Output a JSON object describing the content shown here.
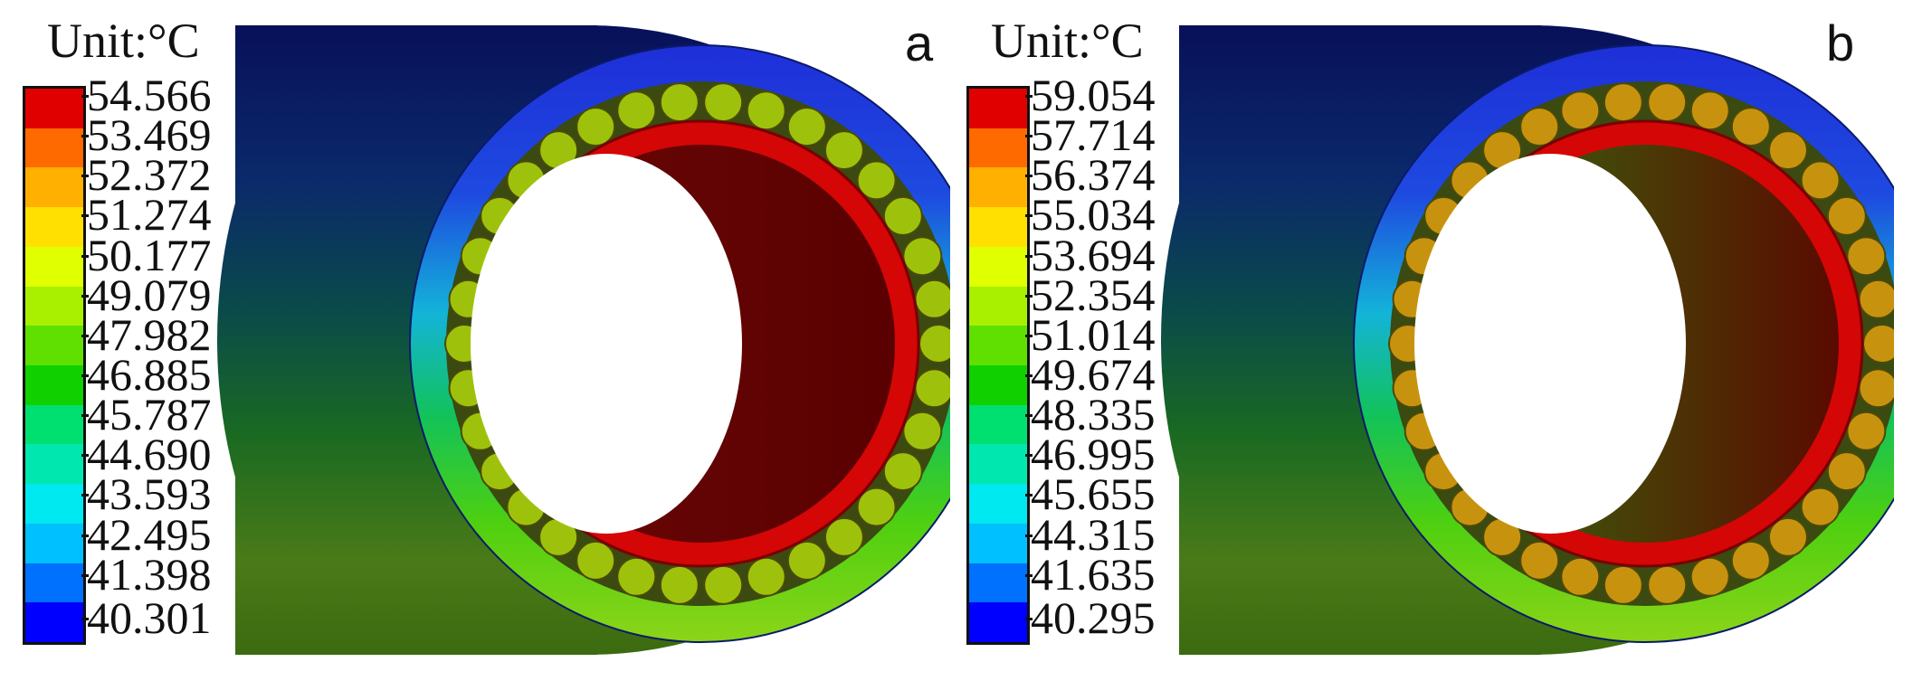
{
  "panels": [
    {
      "letter": "a",
      "unit_label": "Unit:°C",
      "legend_values": [
        "54.566",
        "53.469",
        "52.372",
        "51.274",
        "50.177",
        "49.079",
        "47.982",
        "46.885",
        "45.787",
        "44.690",
        "43.593",
        "42.495",
        "41.398",
        "40.301"
      ],
      "roller_color": "#9ec20c"
    },
    {
      "letter": "b",
      "unit_label": "Unit:°C",
      "legend_values": [
        "59.054",
        "57.714",
        "56.374",
        "55.034",
        "53.694",
        "52.354",
        "51.014",
        "49.674",
        "48.335",
        "46.995",
        "45.655",
        "44.315",
        "41.635",
        "40.295"
      ],
      "roller_color": "#c7930f"
    }
  ],
  "legend_colors": [
    "#e00000",
    "#ff6a00",
    "#ffb000",
    "#ffe000",
    "#e0ff00",
    "#a8f000",
    "#60e000",
    "#10d000",
    "#00e070",
    "#00e8b0",
    "#00e8f0",
    "#00c0ff",
    "#0070ff",
    "#0000ff"
  ]
}
